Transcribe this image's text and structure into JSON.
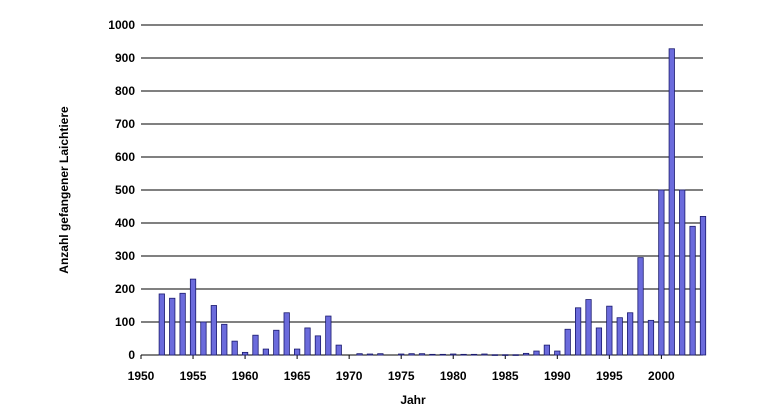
{
  "chart_data": {
    "type": "bar",
    "xlabel": "Jahr",
    "ylabel": "Anzahl gefangener Laichtiere",
    "ylim": [
      0,
      1000
    ],
    "xlim": [
      1950,
      2004
    ],
    "y_ticks": [
      0,
      100,
      200,
      300,
      400,
      500,
      600,
      700,
      800,
      900,
      1000
    ],
    "x_ticks": [
      1950,
      1955,
      1960,
      1965,
      1970,
      1975,
      1980,
      1985,
      1990,
      1995,
      2000
    ],
    "grid": "horizontal",
    "bar_color": "#6b6bdc",
    "bar_outline": "#1a1a6e",
    "x": [
      1952,
      1953,
      1954,
      1955,
      1956,
      1957,
      1958,
      1959,
      1960,
      1961,
      1962,
      1963,
      1964,
      1965,
      1966,
      1967,
      1968,
      1969,
      1970,
      1971,
      1972,
      1973,
      1974,
      1975,
      1976,
      1977,
      1978,
      1979,
      1980,
      1981,
      1982,
      1983,
      1984,
      1985,
      1986,
      1987,
      1988,
      1989,
      1990,
      1991,
      1992,
      1993,
      1994,
      1995,
      1996,
      1997,
      1998,
      1999,
      2000,
      2001,
      2002,
      2003,
      2004
    ],
    "values": [
      185,
      172,
      187,
      230,
      100,
      150,
      93,
      42,
      8,
      60,
      18,
      75,
      128,
      18,
      82,
      58,
      118,
      30,
      0,
      4,
      3,
      4,
      0,
      3,
      4,
      4,
      2,
      2,
      3,
      2,
      2,
      3,
      1,
      1,
      1,
      5,
      12,
      30,
      12,
      78,
      143,
      168,
      82,
      148,
      113,
      128,
      295,
      105,
      500,
      928,
      500,
      390,
      420
    ]
  }
}
